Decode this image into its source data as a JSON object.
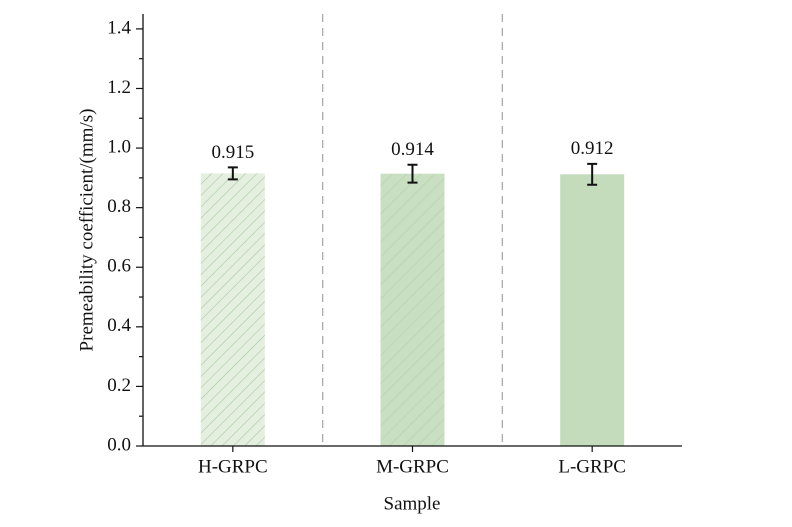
{
  "chart_data": {
    "type": "bar",
    "x_label": "Sample",
    "y_label": "Premeability coefficient/(mm/s)",
    "categories": [
      "H-GRPC",
      "M-GRPC",
      "L-GRPC"
    ],
    "values": [
      0.915,
      0.914,
      0.912
    ],
    "errors": [
      0.02,
      0.03,
      0.035
    ],
    "color": "#c4dcbc",
    "ylim": [
      0,
      1.45
    ],
    "yticks": [
      {
        "value": 0,
        "label": "0.0"
      },
      0.2,
      0.4,
      0.6,
      0.8,
      {
        "value": 1,
        "label": "1.0"
      },
      1.2,
      1.4
    ]
  }
}
